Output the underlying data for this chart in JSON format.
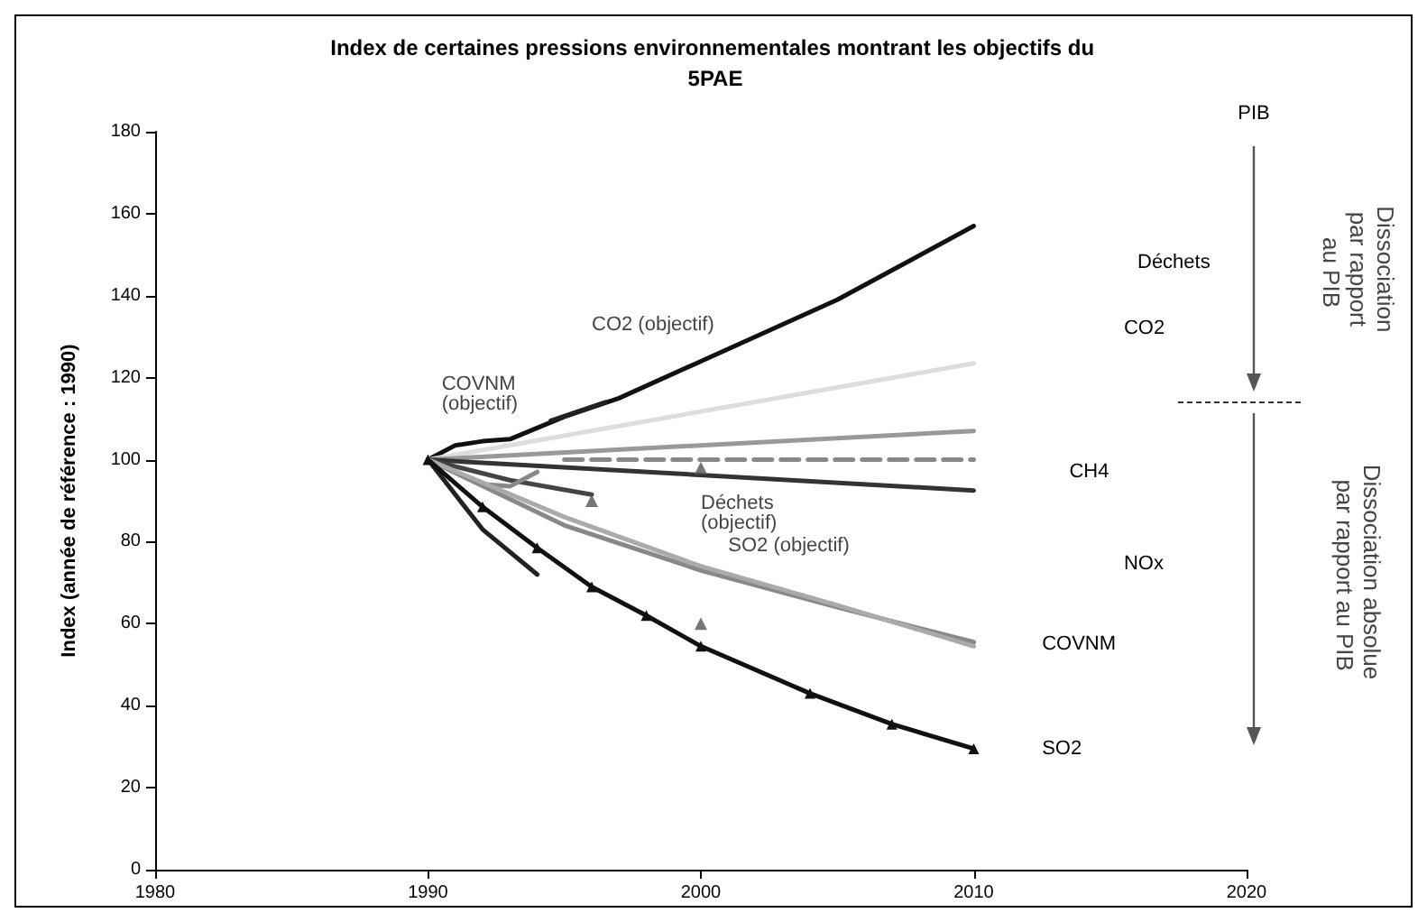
{
  "chart_data": {
    "type": "line",
    "title": "Index de certaines pressions environnementales montrant les objectifs du 5PAE",
    "ylabel": "Index (année de référence : 1990)",
    "xlim": [
      1980,
      2020
    ],
    "xticks": [
      1980,
      1990,
      2000,
      2010,
      2020
    ],
    "ylim": [
      0,
      180
    ],
    "yticks": [
      0,
      20,
      40,
      60,
      80,
      100,
      120,
      140,
      160,
      180
    ],
    "grid": false,
    "marker": "none",
    "line_style": "solid",
    "series": [
      {
        "color": "#111111",
        "x": [
          1990,
          1991,
          1992,
          1993,
          1995,
          1997,
          2000,
          2005,
          2010
        ],
        "values": [
          100,
          103.5,
          104.5,
          105,
          110.5,
          115,
          124,
          139,
          157
        ]
      },
      {
        "color": "#222222",
        "x": [
          1994.5,
          1996.5
        ],
        "values": [
          109.5,
          114
        ]
      },
      {
        "color": "#dddddd",
        "x": [
          1990,
          2010
        ],
        "values": [
          100,
          123.5
        ]
      },
      {
        "color": "#999999",
        "x": [
          1990,
          2010
        ],
        "values": [
          100,
          107
        ]
      },
      {
        "color": "#888888",
        "line_style": "dashed",
        "x": [
          1995,
          2010
        ],
        "values": [
          100,
          100
        ]
      },
      {
        "color": "#333333",
        "x": [
          1990,
          2010
        ],
        "values": [
          100,
          92.5
        ]
      },
      {
        "color": "#444444",
        "x": [
          1990,
          1993,
          1996
        ],
        "values": [
          100,
          95,
          91.5
        ]
      },
      {
        "color": "#888888",
        "x": [
          1990,
          1992,
          1993,
          1994
        ],
        "values": [
          100,
          94,
          93.5,
          97
        ]
      },
      {
        "color": "#888888",
        "x": [
          1990,
          1995,
          2000,
          2005,
          2010
        ],
        "values": [
          100,
          84,
          73,
          64,
          55.5
        ]
      },
      {
        "color": "#aaaaaa",
        "x": [
          1990,
          1995,
          2000,
          2005,
          2010
        ],
        "values": [
          100,
          86,
          74,
          64.5,
          54.5
        ]
      },
      {
        "color": "#222222",
        "x": [
          1990,
          1992,
          1994
        ],
        "values": [
          100,
          83,
          72
        ]
      },
      {
        "color": "#111111",
        "marker": "triangle",
        "x": [
          1990,
          1992,
          1994,
          1996,
          1998,
          2000,
          2004,
          2007,
          2010
        ],
        "values": [
          100,
          88.5,
          78.5,
          69,
          62,
          54.5,
          43,
          35.5,
          29.5
        ]
      },
      {
        "color": "#555555",
        "type": "scatter",
        "marker": "triangle",
        "x": [
          1996,
          2000,
          2000
        ],
        "values": [
          90,
          60,
          98
        ]
      }
    ],
    "annotations": [
      "CO2 (objectif)",
      "COVNM (objectif)",
      "Déchets (objectif)",
      "SO2 (objectif)",
      "Déchets",
      "CO2",
      "CH4",
      "NOx",
      "COVNM",
      "SO2",
      "PIB",
      "Dissociation par rapport au PIB",
      "Dissociation absolue par rapport au PIB"
    ]
  }
}
